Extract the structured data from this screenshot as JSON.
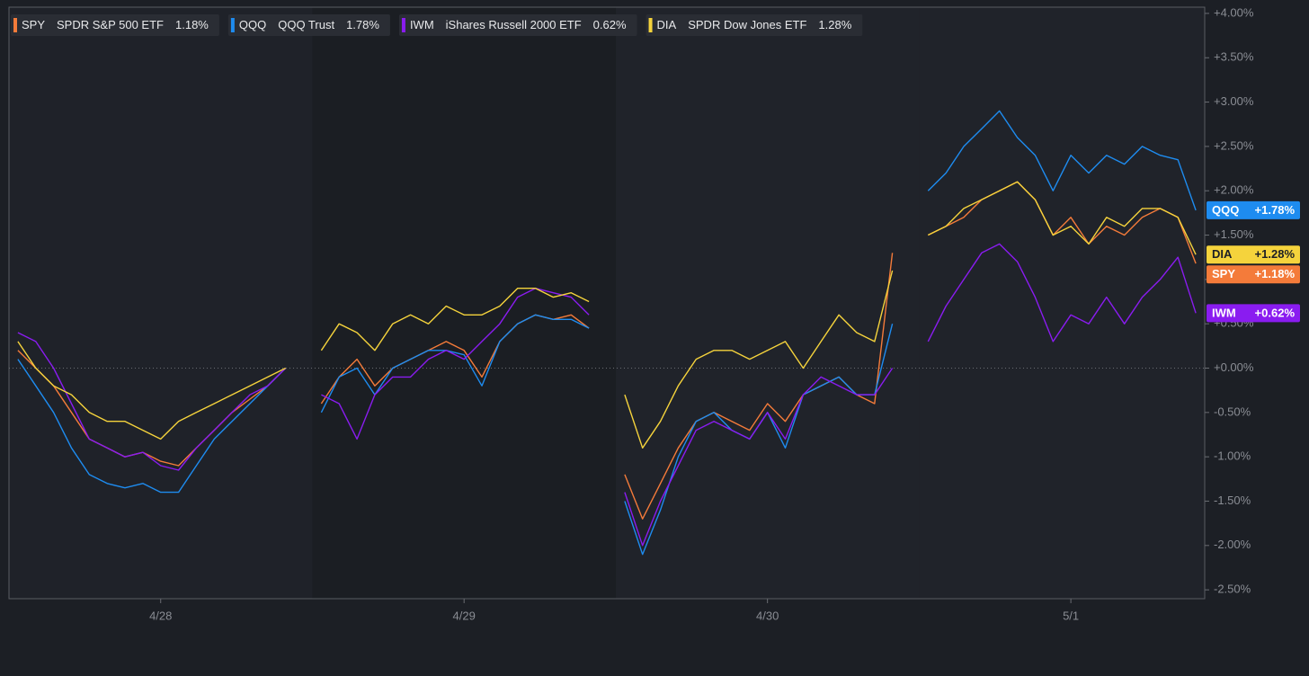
{
  "chart_data": {
    "type": "line",
    "categories": [
      null,
      null,
      null,
      null,
      null,
      null,
      null,
      null,
      "4/28",
      null,
      null,
      null,
      null,
      null,
      null,
      null,
      null,
      null,
      null,
      null,
      null,
      null,
      null,
      null,
      null,
      "4/29",
      null,
      null,
      null,
      null,
      null,
      null,
      null,
      null,
      null,
      null,
      null,
      null,
      null,
      null,
      null,
      null,
      "4/30",
      null,
      null,
      null,
      null,
      null,
      null,
      null,
      null,
      null,
      null,
      null,
      null,
      null,
      null,
      null,
      null,
      "5/1",
      null,
      null,
      null,
      null,
      null,
      null,
      null
    ],
    "series": [
      {
        "name": "SPY",
        "description": "SPDR S&P 500 ETF",
        "color": "#f47b3a",
        "legend_label": "1.18%",
        "tag_label": "+1.18%",
        "values": [
          0.2,
          0.0,
          -0.2,
          -0.5,
          -0.8,
          -0.9,
          -1.0,
          -0.95,
          -1.05,
          -1.1,
          -0.9,
          -0.7,
          -0.5,
          -0.35,
          -0.2,
          0.0,
          null,
          -0.4,
          -0.1,
          0.1,
          -0.2,
          0.0,
          0.1,
          0.2,
          0.3,
          0.2,
          -0.1,
          0.3,
          0.5,
          0.6,
          0.55,
          0.6,
          0.45,
          null,
          -1.2,
          -1.7,
          -1.3,
          -0.9,
          -0.6,
          -0.5,
          -0.6,
          -0.7,
          -0.4,
          -0.6,
          -0.3,
          -0.2,
          -0.1,
          -0.3,
          -0.4,
          1.3,
          null,
          1.5,
          1.6,
          1.7,
          1.9,
          2.0,
          2.1,
          1.9,
          1.5,
          1.7,
          1.4,
          1.6,
          1.5,
          1.7,
          1.8,
          1.7,
          1.18
        ]
      },
      {
        "name": "QQQ",
        "description": "QQQ Trust",
        "color": "#1e8cf0",
        "legend_label": "1.78%",
        "tag_label": "+1.78%",
        "values": [
          0.1,
          -0.2,
          -0.5,
          -0.9,
          -1.2,
          -1.3,
          -1.35,
          -1.3,
          -1.4,
          -1.4,
          -1.1,
          -0.8,
          -0.6,
          -0.4,
          -0.2,
          0.0,
          null,
          -0.5,
          -0.1,
          0.0,
          -0.3,
          0.0,
          0.1,
          0.2,
          0.2,
          0.15,
          -0.2,
          0.3,
          0.5,
          0.6,
          0.55,
          0.55,
          0.45,
          null,
          -1.5,
          -2.1,
          -1.6,
          -1.0,
          -0.6,
          -0.5,
          -0.7,
          -0.8,
          -0.5,
          -0.9,
          -0.3,
          -0.2,
          -0.1,
          -0.3,
          -0.3,
          0.5,
          null,
          2.0,
          2.2,
          2.5,
          2.7,
          2.9,
          2.6,
          2.4,
          2.0,
          2.4,
          2.2,
          2.4,
          2.3,
          2.5,
          2.4,
          2.35,
          1.78
        ]
      },
      {
        "name": "IWM",
        "description": "iShares Russell 2000 ETF",
        "color": "#8a1cf0",
        "legend_label": "0.62%",
        "tag_label": "+0.62%",
        "values": [
          0.4,
          0.3,
          0.0,
          -0.4,
          -0.8,
          -0.9,
          -1.0,
          -0.95,
          -1.1,
          -1.15,
          -0.9,
          -0.7,
          -0.5,
          -0.3,
          -0.2,
          0.0,
          null,
          -0.3,
          -0.4,
          -0.8,
          -0.3,
          -0.1,
          -0.1,
          0.1,
          0.2,
          0.1,
          0.3,
          0.5,
          0.8,
          0.9,
          0.85,
          0.8,
          0.6,
          null,
          -1.4,
          -2.0,
          -1.5,
          -1.1,
          -0.7,
          -0.6,
          -0.7,
          -0.8,
          -0.5,
          -0.8,
          -0.3,
          -0.1,
          -0.2,
          -0.3,
          -0.3,
          0.0,
          null,
          0.3,
          0.7,
          1.0,
          1.3,
          1.4,
          1.2,
          0.8,
          0.3,
          0.6,
          0.5,
          0.8,
          0.5,
          0.8,
          1.0,
          1.25,
          0.62
        ]
      },
      {
        "name": "DIA",
        "description": "SPDR Dow Jones ETF",
        "color": "#f5d33c",
        "legend_label": "1.28%",
        "tag_label": "+1.28%",
        "values": [
          0.3,
          0.0,
          -0.2,
          -0.3,
          -0.5,
          -0.6,
          -0.6,
          -0.7,
          -0.8,
          -0.6,
          -0.5,
          -0.4,
          -0.3,
          -0.2,
          -0.1,
          0.0,
          null,
          0.2,
          0.5,
          0.4,
          0.2,
          0.5,
          0.6,
          0.5,
          0.7,
          0.6,
          0.6,
          0.7,
          0.9,
          0.9,
          0.8,
          0.85,
          0.75,
          null,
          -0.3,
          -0.9,
          -0.6,
          -0.2,
          0.1,
          0.2,
          0.2,
          0.1,
          0.2,
          0.3,
          0.0,
          0.3,
          0.6,
          0.4,
          0.3,
          1.1,
          null,
          1.5,
          1.6,
          1.8,
          1.9,
          2.0,
          2.1,
          1.9,
          1.5,
          1.6,
          1.4,
          1.7,
          1.6,
          1.8,
          1.8,
          1.7,
          1.28
        ]
      }
    ],
    "ylim": [
      -2.6,
      4.07
    ],
    "yticks": [
      {
        "value": 4.0,
        "label": "+4.00%"
      },
      {
        "value": 3.5,
        "label": "+3.50%"
      },
      {
        "value": 3.0,
        "label": "+3.00%"
      },
      {
        "value": 2.5,
        "label": "+2.50%"
      },
      {
        "value": 2.0,
        "label": "+2.00%"
      },
      {
        "value": 1.5,
        "label": "+1.50%"
      },
      {
        "value": 1.0,
        "label": "+1.00%"
      },
      {
        "value": 0.5,
        "label": "+0.50%"
      },
      {
        "value": 0.0,
        "label": "+0.00%"
      },
      {
        "value": -0.5,
        "label": "-0.50%"
      },
      {
        "value": -1.0,
        "label": "-1.00%"
      },
      {
        "value": -1.5,
        "label": "-1.50%"
      },
      {
        "value": -2.0,
        "label": "-2.00%"
      },
      {
        "value": -2.5,
        "label": "-2.50%"
      }
    ],
    "zero_line": true
  }
}
